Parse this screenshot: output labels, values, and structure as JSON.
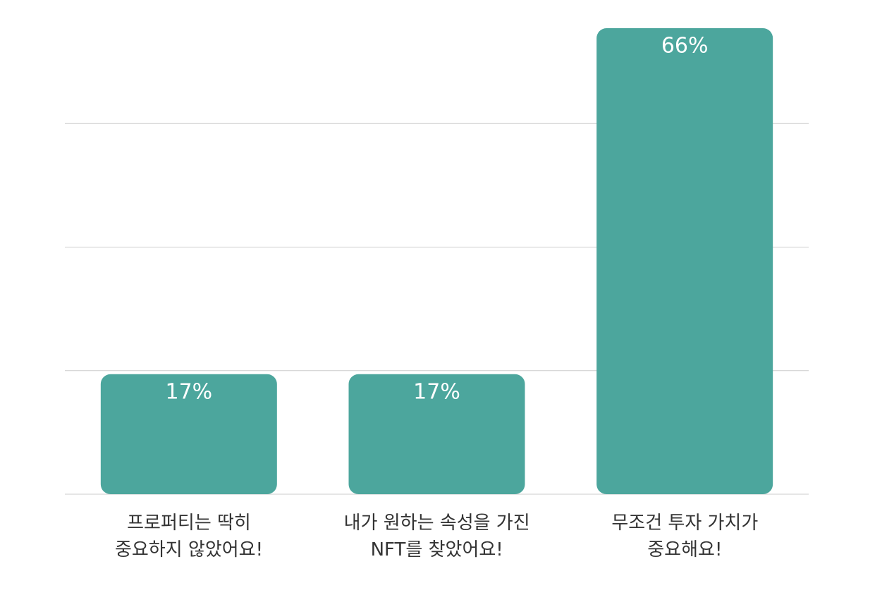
{
  "chart_data": {
    "type": "bar",
    "categories": [
      "프로퍼티는 딱히\n중요하지 않았어요!",
      "내가 원하는 속성을 가진\nNFT를 찾았어요!",
      "무조건 투자 가치가\n중요해요!"
    ],
    "values": [
      17,
      17,
      66
    ],
    "value_labels": [
      "17%",
      "17%",
      "66%"
    ],
    "color": "#4ca69d",
    "ylim": [
      0,
      70
    ],
    "yticks": [
      0,
      17.5,
      35,
      52.5
    ],
    "grid": true
  }
}
